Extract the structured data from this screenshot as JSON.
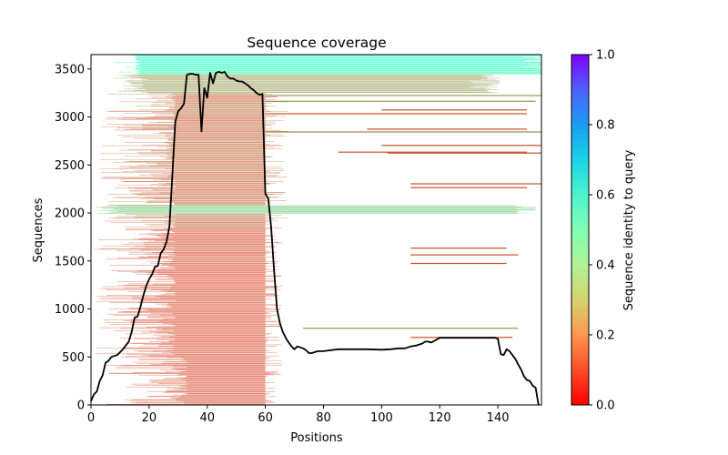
{
  "chart_data": {
    "type": "heatmap",
    "title": "Sequence coverage",
    "xlabel": "Positions",
    "ylabel": "Sequences",
    "xlim": [
      0,
      155
    ],
    "ylim": [
      0,
      3650
    ],
    "xticks": [
      0,
      20,
      40,
      60,
      80,
      100,
      120,
      140
    ],
    "yticks": [
      0,
      500,
      1000,
      1500,
      2000,
      2500,
      3000,
      3500
    ],
    "grid": false,
    "colorbar": {
      "label": "Sequence identity to query",
      "range": [
        0.0,
        1.0
      ],
      "ticks": [
        "0.0",
        "0.2",
        "0.4",
        "0.6",
        "0.8",
        "1.0"
      ],
      "colormap": "rainbow_r",
      "placement": "right"
    },
    "coverage_line": {
      "name": "coverage",
      "color": "#000000",
      "x": [
        0,
        1,
        2,
        3,
        4,
        5,
        6,
        7,
        8,
        9,
        10,
        11,
        12,
        13,
        14,
        15,
        16,
        17,
        18,
        19,
        20,
        21,
        22,
        23,
        24,
        25,
        26,
        27,
        28,
        29,
        30,
        31,
        32,
        33,
        34,
        35,
        36,
        37,
        38,
        39,
        40,
        41,
        42,
        43,
        44,
        45,
        46,
        47,
        48,
        49,
        50,
        51,
        52,
        53,
        54,
        55,
        56,
        57,
        58,
        59,
        60,
        61,
        62,
        63,
        64,
        65,
        66,
        67,
        68,
        69,
        70,
        71,
        72,
        73,
        74,
        75,
        76,
        78,
        80,
        85,
        90,
        95,
        100,
        103,
        106,
        108,
        110,
        112,
        114,
        115,
        116,
        117,
        118,
        120,
        125,
        130,
        135,
        139,
        140,
        141,
        142,
        143,
        144,
        145,
        146,
        147,
        148,
        149,
        150,
        151,
        152,
        153,
        154
      ],
      "y": [
        40,
        110,
        140,
        250,
        310,
        440,
        460,
        500,
        510,
        520,
        550,
        580,
        620,
        660,
        760,
        910,
        920,
        1020,
        1140,
        1240,
        1310,
        1360,
        1440,
        1450,
        1580,
        1620,
        1700,
        1860,
        2390,
        2950,
        3060,
        3090,
        3140,
        3440,
        3450,
        3450,
        3440,
        3440,
        2850,
        3300,
        3200,
        3460,
        3350,
        3460,
        3470,
        3460,
        3470,
        3420,
        3400,
        3400,
        3380,
        3370,
        3370,
        3350,
        3330,
        3300,
        3280,
        3250,
        3230,
        3240,
        2200,
        2150,
        1850,
        1400,
        1000,
        850,
        760,
        700,
        650,
        610,
        580,
        610,
        600,
        590,
        570,
        540,
        540,
        560,
        560,
        580,
        580,
        580,
        575,
        580,
        590,
        590,
        610,
        620,
        640,
        660,
        660,
        650,
        665,
        700,
        700,
        700,
        700,
        700,
        690,
        530,
        520,
        580,
        560,
        520,
        480,
        420,
        370,
        300,
        260,
        250,
        200,
        180,
        0
      ]
    },
    "alignment_rows": {
      "description": "Each horizontal segment is one aligned sequence; x spans its covered positions, color = identity to query",
      "groups": [
        {
          "seq_range": [
            0,
            1850
          ],
          "core_start": 29,
          "core_end": 60,
          "identity": 0.08,
          "note": "dense core block, sequences spanning ~positions 29–60, extended tails 1–66"
        },
        {
          "seq_range": [
            1850,
            2100
          ],
          "core_start": 29,
          "core_end": 62,
          "identity": 0.1,
          "note": "includes full-length rows reaching position ~155"
        },
        {
          "seq_range": [
            1990,
            2080
          ],
          "core_start": 1,
          "core_end": 152,
          "identity": 0.3,
          "note": "orange/yellow-green full-length band"
        },
        {
          "seq_range": [
            2100,
            3250
          ],
          "core_start": 29,
          "core_end": 62,
          "identity": 0.12,
          "note": "core block with scattered long rows to ~155"
        },
        {
          "seq_range": [
            3250,
            3440
          ],
          "core_start": 8,
          "core_end": 140,
          "identity": 0.22,
          "note": "orange band, mostly positions ~8–140"
        },
        {
          "seq_range": [
            3440,
            3650
          ],
          "core_start": 15,
          "core_end": 155,
          "identity": 0.5,
          "note": "green/cyan top band, positions ~15–155"
        }
      ],
      "long_rows": [
        {
          "seq": 795,
          "start": 73,
          "end": 147,
          "identity": 0.2
        },
        {
          "seq": 700,
          "start": 110,
          "end": 145,
          "identity": 0.1
        },
        {
          "seq": 1470,
          "start": 110,
          "end": 143,
          "identity": 0.1
        },
        {
          "seq": 1560,
          "start": 110,
          "end": 147,
          "identity": 0.1
        },
        {
          "seq": 1630,
          "start": 110,
          "end": 143,
          "identity": 0.1
        },
        {
          "seq": 2260,
          "start": 110,
          "end": 150,
          "identity": 0.1
        },
        {
          "seq": 2300,
          "start": 110,
          "end": 155,
          "identity": 0.1
        },
        {
          "seq": 2620,
          "start": 102,
          "end": 155,
          "identity": 0.1
        },
        {
          "seq": 2630,
          "start": 85,
          "end": 150,
          "identity": 0.1
        },
        {
          "seq": 2700,
          "start": 100,
          "end": 155,
          "identity": 0.1
        },
        {
          "seq": 2870,
          "start": 95,
          "end": 150,
          "identity": 0.1
        },
        {
          "seq": 2840,
          "start": 60,
          "end": 155,
          "identity": 0.18
        },
        {
          "seq": 3070,
          "start": 100,
          "end": 150,
          "identity": 0.1
        },
        {
          "seq": 3030,
          "start": 60,
          "end": 150,
          "identity": 0.1
        },
        {
          "seq": 3160,
          "start": 60,
          "end": 153,
          "identity": 0.2
        },
        {
          "seq": 3220,
          "start": 60,
          "end": 155,
          "identity": 0.2
        }
      ]
    }
  }
}
